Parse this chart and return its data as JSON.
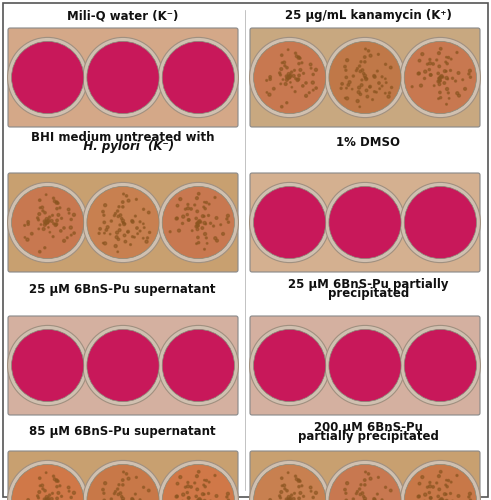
{
  "fig_width": 4.91,
  "fig_height": 5.0,
  "dpi": 100,
  "background_color": "#ffffff",
  "border_color": "#000000",
  "rows": [
    {
      "left_label": "Mili-Q water (K⁻)",
      "right_label": "25 µg/mL kanamycin (K⁺)",
      "left_label_bold": true,
      "right_label_bold": true,
      "left_label_italic_part": null,
      "right_label_italic_part": null,
      "left_wells": [
        "#c8185a",
        "#c8185a",
        "#c8185a"
      ],
      "right_wells": [
        "#c87850",
        "#c07848",
        "#c87850"
      ],
      "left_well_texture": [
        false,
        false,
        false
      ],
      "right_well_texture": [
        true,
        true,
        true
      ],
      "plate_bg_left": "#d4a888",
      "plate_bg_right": "#c8a880"
    },
    {
      "left_label": "BHI medium untreated with\n   H. pylori  (K⁻)",
      "right_label": "1% DMSO",
      "left_label_bold": true,
      "right_label_bold": true,
      "left_label_italic_part": "H. pylori",
      "right_label_italic_part": null,
      "left_wells": [
        "#c87850",
        "#c88050",
        "#c87850"
      ],
      "right_wells": [
        "#c8185a",
        "#c8185a",
        "#c8185a"
      ],
      "left_well_texture": [
        true,
        true,
        true
      ],
      "right_well_texture": [
        false,
        false,
        false
      ],
      "plate_bg_left": "#c8a070",
      "plate_bg_right": "#d4b090"
    },
    {
      "left_label": "25 µM 6BnS-Pu supernatant",
      "right_label": "25 µM 6BnS-Pu partially\nprecipitated",
      "left_label_bold": true,
      "right_label_bold": true,
      "left_label_italic_part": null,
      "right_label_italic_part": null,
      "left_wells": [
        "#c8185a",
        "#c8185a",
        "#c8185a"
      ],
      "right_wells": [
        "#c8185a",
        "#c8185a",
        "#c8185a"
      ],
      "left_well_texture": [
        false,
        false,
        false
      ],
      "right_well_texture": [
        false,
        false,
        false
      ],
      "plate_bg_left": "#d4b0a0",
      "plate_bg_right": "#d4b0a0"
    },
    {
      "left_label": "85 µM 6BnS-Pu supernatant",
      "right_label": "200 µM 6BnS-Pu\npartially precipitated",
      "left_label_bold": true,
      "right_label_bold": true,
      "left_label_italic_part": null,
      "right_label_italic_part": null,
      "left_wells": [
        "#d07848",
        "#c87848",
        "#d07848"
      ],
      "right_wells": [
        "#c88050",
        "#c87850",
        "#c87848"
      ],
      "left_well_texture": [
        true,
        true,
        true
      ],
      "right_well_texture": [
        true,
        true,
        true
      ],
      "plate_bg_left": "#c8a070",
      "plate_bg_right": "#c8a070"
    }
  ]
}
